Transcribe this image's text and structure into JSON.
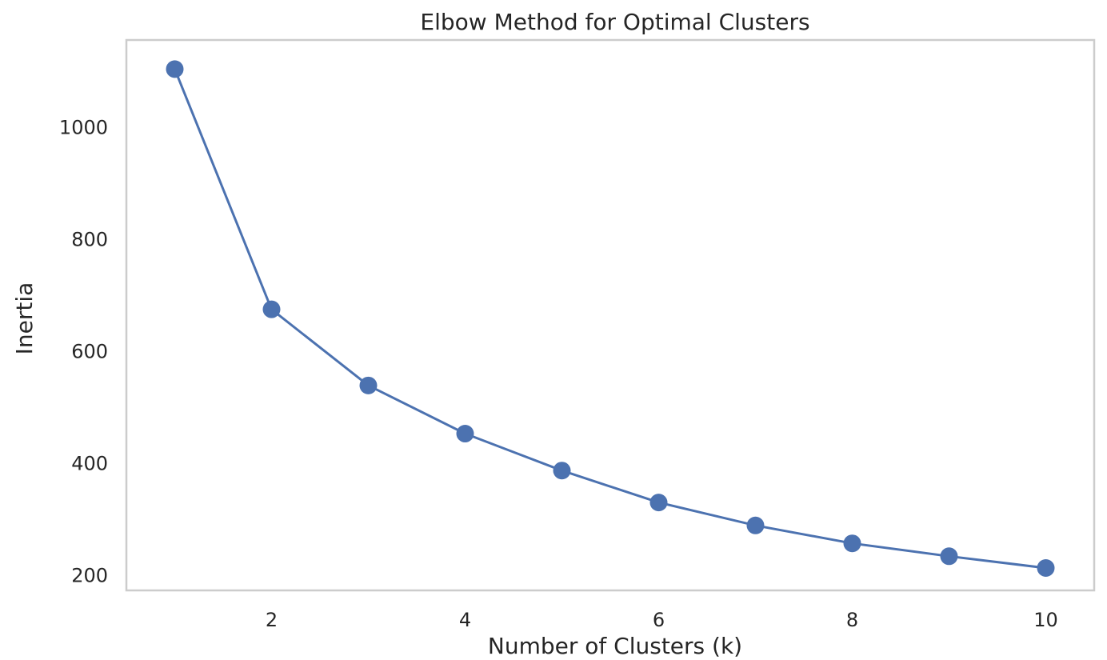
{
  "chart_data": {
    "type": "line",
    "title": "Elbow Method for Optimal Clusters",
    "xlabel": "Number of Clusters (k)",
    "ylabel": "Inertia",
    "xlim": [
      0.5,
      10.5
    ],
    "ylim": [
      172,
      1155
    ],
    "x_ticks": [
      2,
      4,
      6,
      8,
      10
    ],
    "y_ticks": [
      200,
      400,
      600,
      800,
      1000
    ],
    "grid": false,
    "legend": "none",
    "markers": "circle",
    "series": [
      {
        "color": "#4c72b0",
        "x": [
          1,
          2,
          3,
          4,
          5,
          6,
          7,
          8,
          9,
          10
        ],
        "y": [
          1103,
          674,
          538,
          452,
          386,
          329,
          288,
          256,
          233,
          212
        ]
      }
    ]
  }
}
